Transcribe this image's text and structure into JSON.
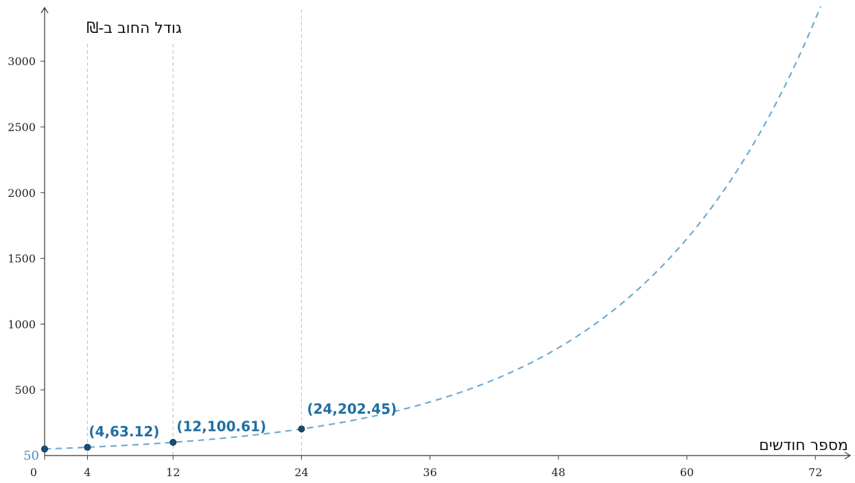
{
  "chart_data": {
    "type": "line",
    "title": "",
    "xlabel": "מספר חודשים",
    "ylabel": "גודל החוב ב-₪",
    "xlim": [
      0,
      75
    ],
    "ylim": [
      0,
      3400
    ],
    "x_ticks": [
      0,
      4,
      12,
      24,
      36,
      48,
      60,
      72
    ],
    "x_tick_labels": [
      "0",
      "4",
      "12",
      "24",
      "36",
      "48",
      "60",
      "72"
    ],
    "y_ticks": [
      500,
      1000,
      1500,
      2000,
      2500,
      3000
    ],
    "y_tick_labels": [
      "500",
      "1000",
      "1500",
      "2000",
      "2500",
      "3000"
    ],
    "y_intercept_label": "50",
    "grid": false,
    "reference_lines_x": [
      4,
      12,
      24
    ],
    "series": [
      {
        "style": "dashed",
        "color": "#6aaad2",
        "model": {
          "a": 50,
          "b": 1.06
        },
        "x_range": [
          0,
          72.5
        ]
      }
    ],
    "points": [
      {
        "x": 0,
        "y": 50,
        "label": ""
      },
      {
        "x": 4,
        "y": 63.12,
        "label": "(4,63.12)"
      },
      {
        "x": 12,
        "y": 100.61,
        "label": "(12,100.61)"
      },
      {
        "x": 24,
        "y": 202.45,
        "label": "(24,202.45)"
      }
    ],
    "colors": {
      "axis": "#333333",
      "curve": "#6aaad2",
      "point": "#1a4f73",
      "point_label": "#1f6fa3",
      "reference": "#bbbbbb"
    }
  }
}
